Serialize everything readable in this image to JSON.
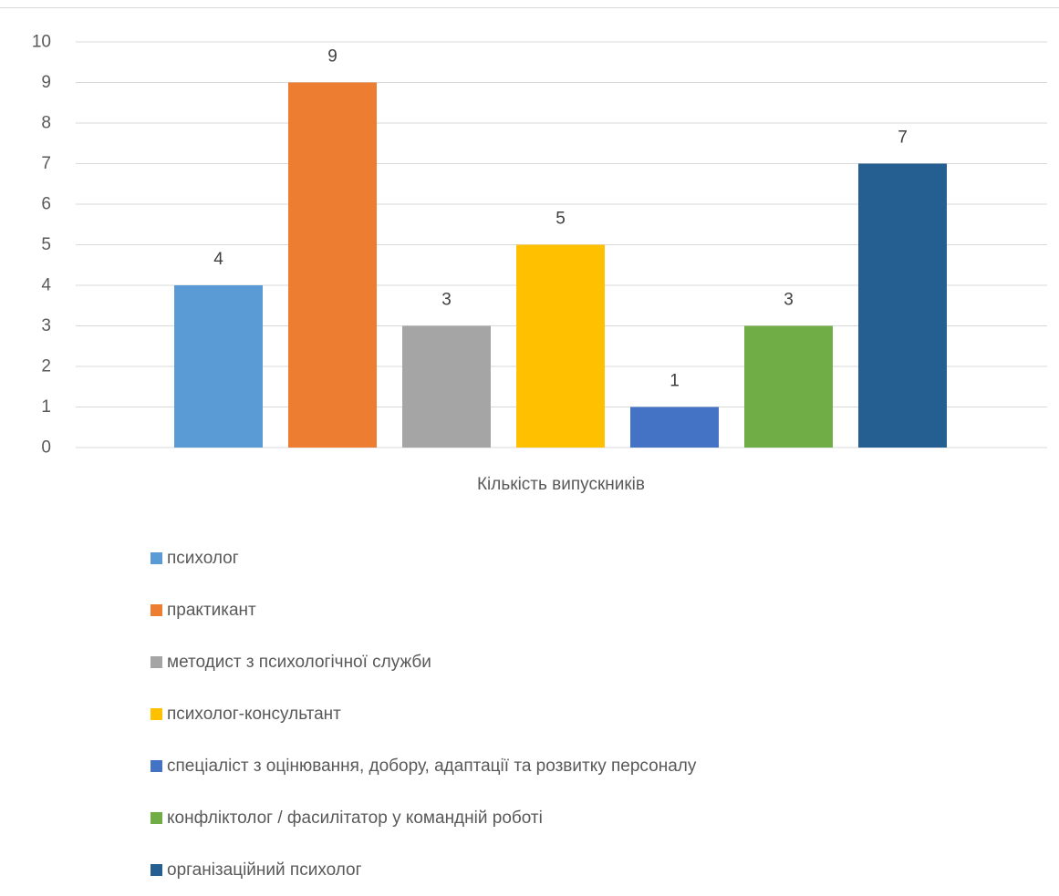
{
  "chart_data": {
    "type": "bar",
    "title": "",
    "xlabel": "Кількість випускників",
    "ylabel": "",
    "ylim": [
      0,
      10
    ],
    "yticks": [
      "0",
      "1",
      "2",
      "3",
      "4",
      "5",
      "6",
      "7",
      "8",
      "9",
      "10"
    ],
    "grid": true,
    "legend_position": "bottom-left",
    "data_labels": true,
    "series": [
      {
        "name": "психолог",
        "value": 4,
        "color": "#5b9bd5"
      },
      {
        "name": "практикант",
        "value": 9,
        "color": "#ed7d31"
      },
      {
        "name": "методист з психологічної служби",
        "value": 3,
        "color": "#a5a5a5"
      },
      {
        "name": "психолог-консультант",
        "value": 5,
        "color": "#ffc000"
      },
      {
        "name": "спеціаліст з оцінювання, добору, адаптації та розвитку персоналу",
        "value": 1,
        "color": "#4472c4"
      },
      {
        "name": "конфліктолог / фасилітатор у командній роботі",
        "value": 3,
        "color": "#70ad47"
      },
      {
        "name": "організаційний психолог",
        "value": 7,
        "color": "#255e91"
      }
    ]
  }
}
